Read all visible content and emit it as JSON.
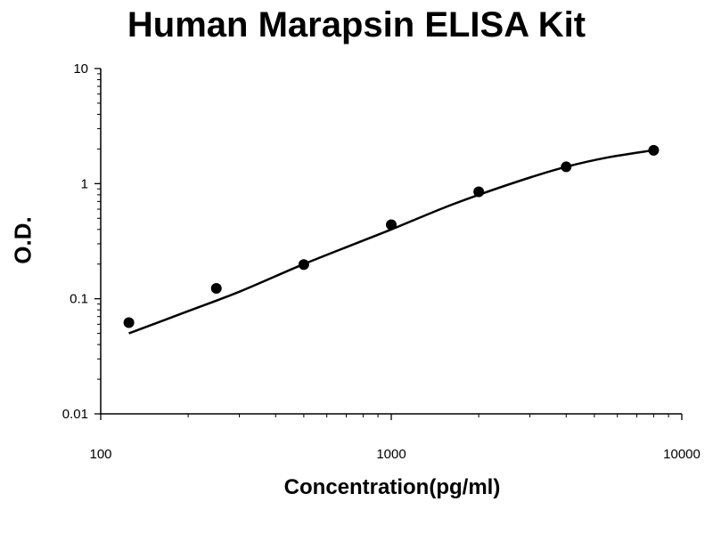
{
  "chart_data": {
    "type": "scatter",
    "title": "Human Marapsin ELISA Kit",
    "xlabel": "Concentration(pg/ml)",
    "ylabel": "O.D.",
    "x_scale": "log",
    "y_scale": "log",
    "xlim": [
      100,
      10000
    ],
    "ylim": [
      0.01,
      10
    ],
    "x_tick_labels": [
      "100",
      "1000",
      "10000"
    ],
    "y_tick_labels": [
      "0.01",
      "0.1",
      "1",
      "10"
    ],
    "grid": false,
    "legend": "none",
    "series": [
      {
        "x": [
          125,
          250,
          500,
          1000,
          2000,
          4000,
          8000
        ],
        "y": [
          0.062,
          0.123,
          0.198,
          0.44,
          0.85,
          1.4,
          1.95
        ],
        "marker_color": "#000000"
      }
    ],
    "fit_curve": {
      "x": [
        125,
        200,
        300,
        500,
        800,
        1000,
        1500,
        2000,
        3000,
        4000,
        5500,
        8000
      ],
      "y": [
        0.05,
        0.078,
        0.115,
        0.2,
        0.32,
        0.4,
        0.61,
        0.8,
        1.13,
        1.4,
        1.68,
        1.95
      ],
      "color": "#000000"
    }
  }
}
